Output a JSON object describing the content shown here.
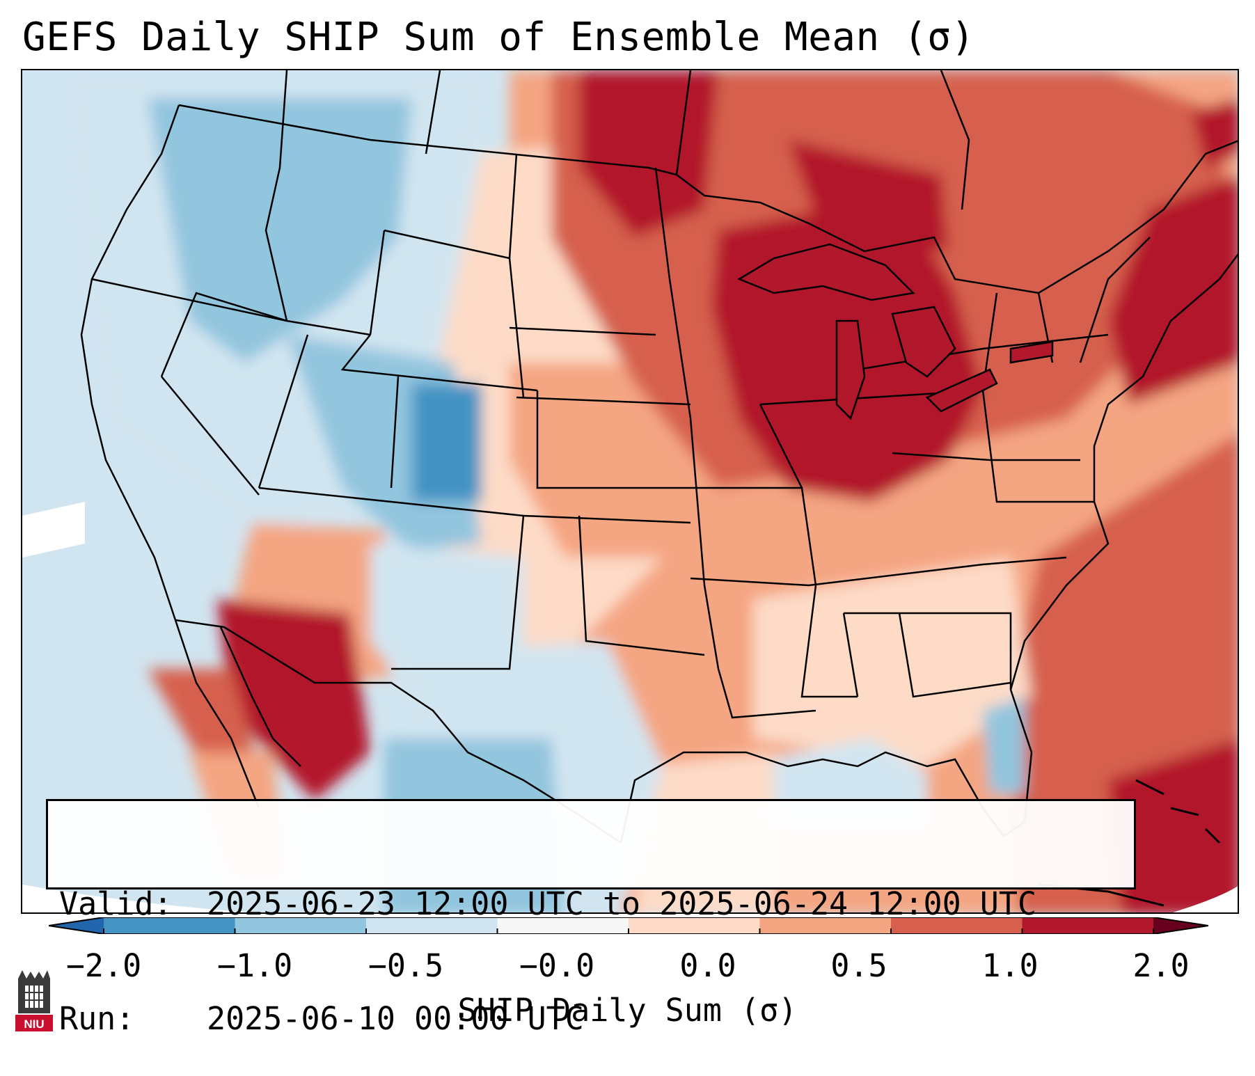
{
  "title": "GEFS Daily SHIP Sum of Ensemble Mean (σ)",
  "info": {
    "valid_label": "Valid:",
    "valid_value": "2025-06-23 12:00 UTC to 2025-06-24 12:00 UTC",
    "run_label": "Run:",
    "run_value": "2025-06-10 00:00 UTC"
  },
  "colorbar": {
    "label": "SHIP Daily Sum (σ)",
    "ticks": [
      "−2.0",
      "−1.0",
      "−0.5",
      "−0.0",
      "0.0",
      "0.5",
      "1.0",
      "2.0"
    ],
    "colors": [
      "#4393c3",
      "#92c5de",
      "#d1e5f0",
      "#f7f7f7",
      "#fddbc7",
      "#f4a582",
      "#d6604d",
      "#b2182b"
    ],
    "under_color": "#2166ac",
    "over_color": "#67001f"
  },
  "map": {
    "region": "Continental United States",
    "field": "SHIP sum of ensemble mean anomaly"
  },
  "logo": {
    "text": "NIU",
    "color": "#c8102e"
  }
}
